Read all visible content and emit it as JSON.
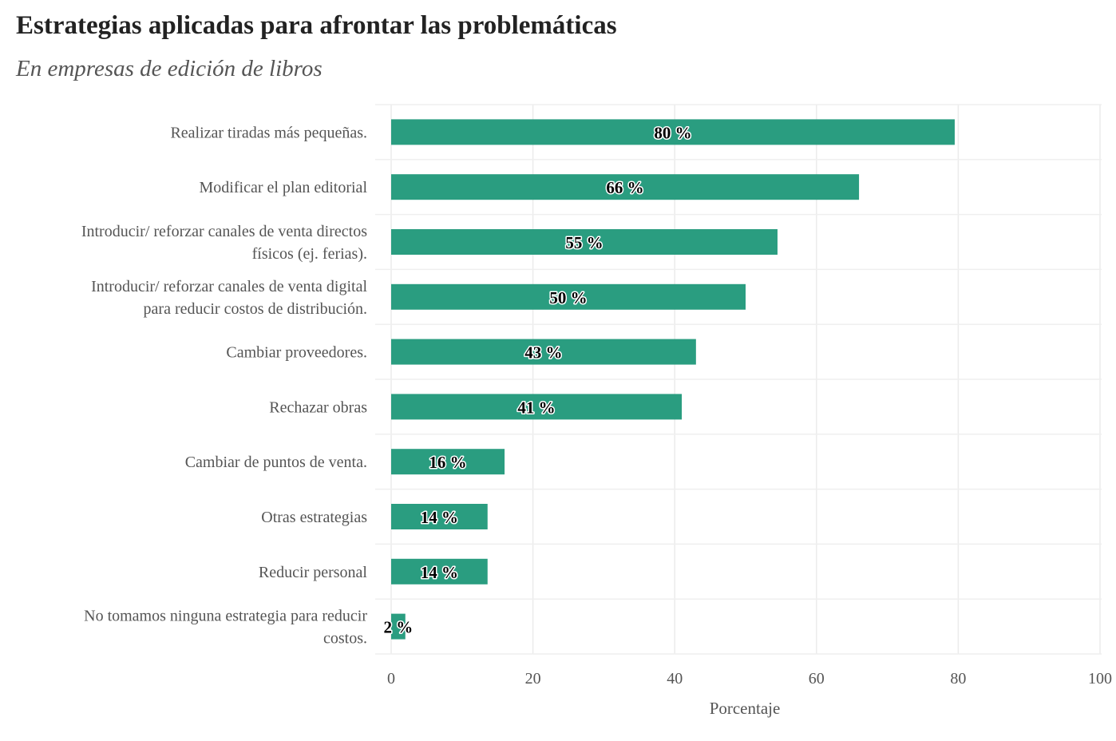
{
  "chart_data": {
    "type": "bar",
    "orientation": "horizontal",
    "title": "Estrategias aplicadas para afrontar las problemáticas",
    "subtitle": "En empresas de edición de libros",
    "xlabel": "Porcentaje",
    "ylabel": "",
    "xlim": [
      0,
      100
    ],
    "xticks": [
      0,
      20,
      40,
      60,
      80,
      100
    ],
    "grid": true,
    "bar_color": "#2a9d80",
    "categories": [
      [
        "Realizar tiradas más pequeñas."
      ],
      [
        "Modificar el plan editorial"
      ],
      [
        "Introducir/ reforzar canales de venta directos",
        "físicos (ej. ferias)."
      ],
      [
        "Introducir/ reforzar canales de venta digital",
        "para reducir costos de distribución."
      ],
      [
        "Cambiar proveedores."
      ],
      [
        "Rechazar obras"
      ],
      [
        "Cambiar de puntos de venta."
      ],
      [
        "Otras estrategias"
      ],
      [
        "Reducir personal"
      ],
      [
        "No tomamos ninguna estrategia para reducir",
        "costos."
      ]
    ],
    "values": [
      79.5,
      66,
      54.5,
      50,
      43,
      41,
      16,
      13.6,
      13.6,
      2
    ],
    "data_labels": [
      "80 %",
      "66 %",
      "55 %",
      "50 %",
      "43 %",
      "41 %",
      "16 %",
      "14 %",
      "14 %",
      "2 %"
    ]
  }
}
